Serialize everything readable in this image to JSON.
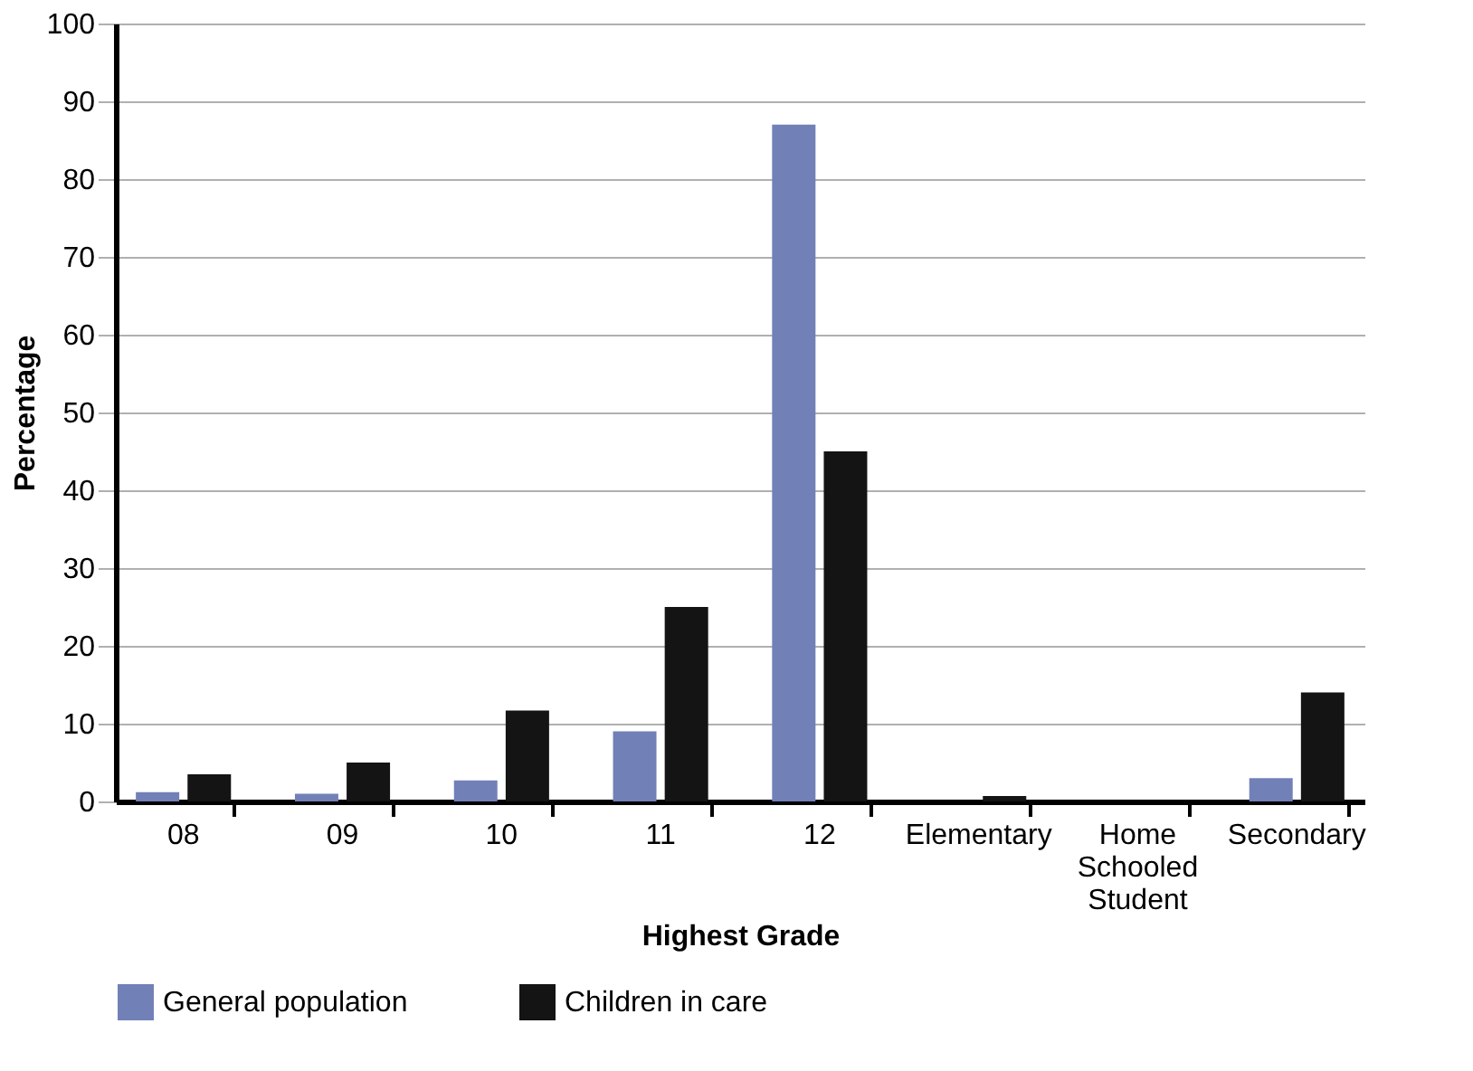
{
  "chart_data": {
    "type": "bar",
    "xlabel": "Highest Grade",
    "ylabel": "Percentage",
    "categories": [
      "08",
      "09",
      "10",
      "11",
      "12",
      "Elementary",
      "Home Schooled Student",
      "Secondary"
    ],
    "series": [
      {
        "name": "General population",
        "color": "#7280b8",
        "values": [
          1.2,
          1,
          2.7,
          9,
          87,
          0,
          0,
          3
        ]
      },
      {
        "name": "Children in care",
        "color": "#141414",
        "values": [
          3.5,
          5,
          11.7,
          25,
          45,
          0.7,
          0,
          14
        ]
      }
    ],
    "ylim": [
      0,
      100
    ],
    "yticks": [
      0,
      10,
      20,
      30,
      40,
      50,
      60,
      70,
      80,
      90,
      100
    ],
    "grid": "y",
    "legend": "bottom"
  }
}
